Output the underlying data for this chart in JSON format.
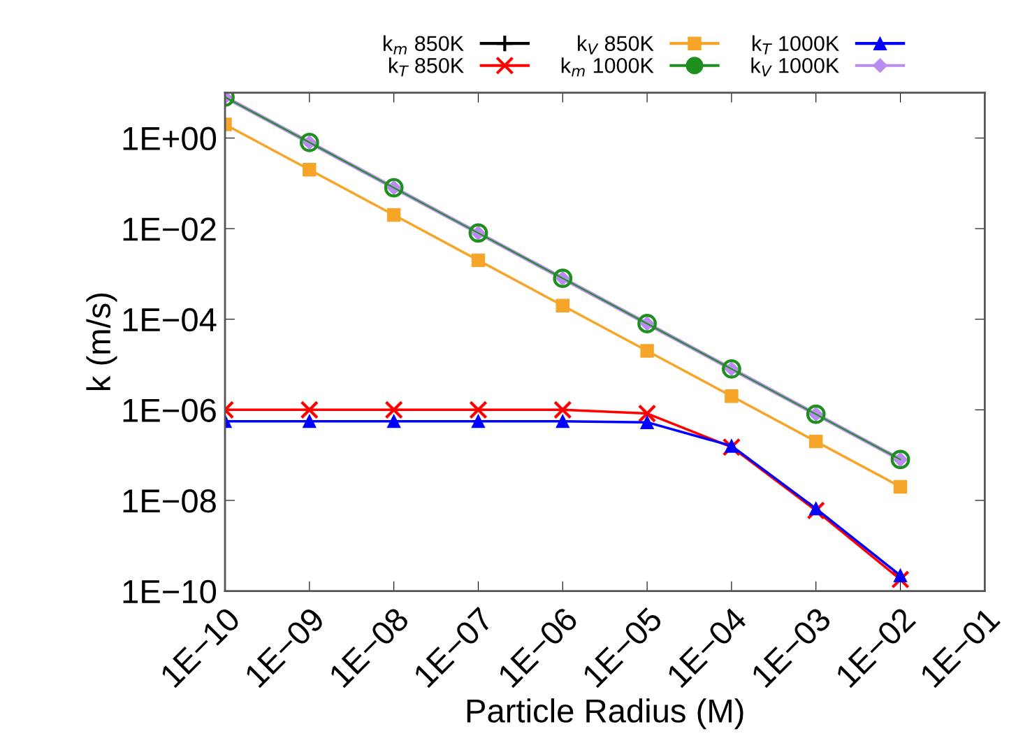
{
  "chart_data": {
    "type": "line",
    "xlabel": "Particle Radius (M)",
    "ylabel": "k (m/s)",
    "x": [
      1e-10,
      1e-09,
      1e-08,
      1e-07,
      1e-06,
      1e-05,
      0.0001,
      0.001,
      0.01
    ],
    "series": [
      {
        "name": "k$_{m}$ 850K",
        "color": "#000000",
        "marker": "plus",
        "values": [
          null,
          null,
          null,
          null,
          null,
          null,
          null,
          null,
          null
        ]
      },
      {
        "name": "k$_{T}$ 850K",
        "color": "#ff0000",
        "marker": "cross",
        "values": [
          1e-06,
          1e-06,
          1e-06,
          1e-06,
          1e-06,
          8.3e-07,
          1.5e-07,
          6e-09,
          1.8e-10
        ]
      },
      {
        "name": "k$_{V}$ 850K",
        "color": "#f7a529",
        "marker": "square",
        "values": [
          2,
          0.2,
          0.02,
          0.002,
          0.0002,
          2e-05,
          2e-06,
          2e-07,
          2e-08
        ]
      },
      {
        "name": "k$_{T}$ 1000K",
        "color": "#0000ff",
        "marker": "triangle",
        "values": [
          5.6e-07,
          5.6e-07,
          5.6e-07,
          5.6e-07,
          5.6e-07,
          5.3e-07,
          1.6e-07,
          6.6e-09,
          2.2e-10
        ]
      },
      {
        "name": "k$_{V}$ 1000K",
        "color": "#bb8cf0",
        "marker": "diamond",
        "values": [
          8,
          0.8,
          0.08,
          0.008,
          0.0008,
          8e-05,
          8e-06,
          8e-07,
          8e-08
        ]
      },
      {
        "name": "k$_{m}$ 1000K",
        "color": "#1f8f1f",
        "marker": "circle",
        "values": [
          8,
          0.8,
          0.08,
          0.008,
          0.0008,
          8e-05,
          8e-06,
          8e-07,
          8e-08
        ]
      }
    ],
    "log": "xy",
    "grid": false,
    "legend": "top",
    "xlim": [
      1e-10,
      0.1
    ],
    "xticks": [
      {
        "value": 1e-10,
        "label": "1E−10"
      },
      {
        "value": 1e-09,
        "label": "1E−09"
      },
      {
        "value": 1e-08,
        "label": "1E−08"
      },
      {
        "value": 1e-07,
        "label": "1E−07"
      },
      {
        "value": 1e-06,
        "label": "1E−06"
      },
      {
        "value": 1e-05,
        "label": "1E−05"
      },
      {
        "value": 0.0001,
        "label": "1E−04"
      },
      {
        "value": 0.001,
        "label": "1E−03"
      },
      {
        "value": 0.01,
        "label": "1E−02"
      },
      {
        "value": 0.1,
        "label": "1E−01"
      }
    ],
    "ylim": [
      1e-10,
      10
    ],
    "yticks": [
      {
        "value": 1e-10,
        "label": "1E−10"
      },
      {
        "value": 1e-08,
        "label": "1E−08"
      },
      {
        "value": 1e-06,
        "label": "1E−06"
      },
      {
        "value": 0.0001,
        "label": "1E−04"
      },
      {
        "value": 0.01,
        "label": "1E−02"
      },
      {
        "value": 1,
        "label": "1E+00"
      }
    ]
  }
}
